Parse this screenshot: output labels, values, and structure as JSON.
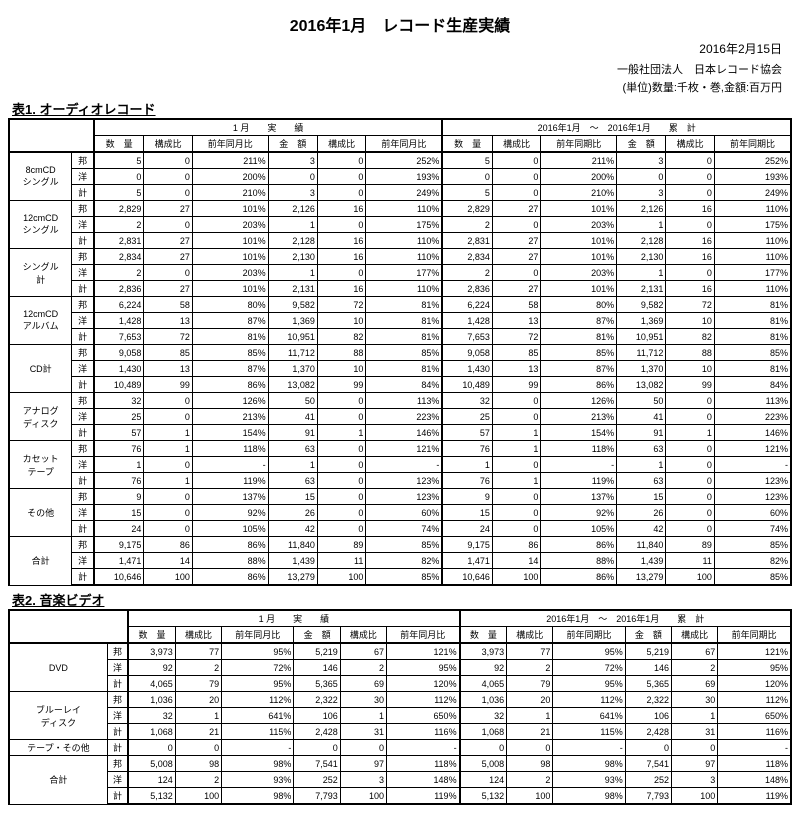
{
  "title": "2016年1月　レコード生産実績",
  "date": "2016年2月15日",
  "org": "一般社団法人　日本レコード協会",
  "unit": "(単位)数量:千枚・巻,金額:百万円",
  "t1": {
    "title": "表1. オーディオレコード",
    "h": {
      "m": "1 月　　実　　績",
      "c": "2016年1月　～　2016年1月　　累　計",
      "q": "数　量",
      "r": "構成比",
      "y": "前年同月比",
      "yc": "前年同期比",
      "a": "金　額"
    }
  },
  "t2": {
    "title": "表2. 音楽ビデオ"
  },
  "cats": [
    "8cmCD\nシングル",
    "12cmCD\nシングル",
    "シングル\n計",
    "12cmCD\nアルバム",
    "CD計",
    "アナログ\nディスク",
    "カセット\nテープ",
    "その他",
    "合計"
  ],
  "subs": [
    "邦",
    "洋",
    "計"
  ],
  "r1": [
    [
      [
        "5",
        "0",
        "211%",
        "3",
        "0",
        "252%"
      ],
      [
        "0",
        "0",
        "200%",
        "0",
        "0",
        "193%"
      ],
      [
        "5",
        "0",
        "210%",
        "3",
        "0",
        "249%"
      ]
    ],
    [
      [
        "2,829",
        "27",
        "101%",
        "2,126",
        "16",
        "110%"
      ],
      [
        "2",
        "0",
        "203%",
        "1",
        "0",
        "175%"
      ],
      [
        "2,831",
        "27",
        "101%",
        "2,128",
        "16",
        "110%"
      ]
    ],
    [
      [
        "2,834",
        "27",
        "101%",
        "2,130",
        "16",
        "110%"
      ],
      [
        "2",
        "0",
        "203%",
        "1",
        "0",
        "177%"
      ],
      [
        "2,836",
        "27",
        "101%",
        "2,131",
        "16",
        "110%"
      ]
    ],
    [
      [
        "6,224",
        "58",
        "80%",
        "9,582",
        "72",
        "81%"
      ],
      [
        "1,428",
        "13",
        "87%",
        "1,369",
        "10",
        "81%"
      ],
      [
        "7,653",
        "72",
        "81%",
        "10,951",
        "82",
        "81%"
      ]
    ],
    [
      [
        "9,058",
        "85",
        "85%",
        "11,712",
        "88",
        "85%"
      ],
      [
        "1,430",
        "13",
        "87%",
        "1,370",
        "10",
        "81%"
      ],
      [
        "10,489",
        "99",
        "86%",
        "13,082",
        "99",
        "84%"
      ]
    ],
    [
      [
        "32",
        "0",
        "126%",
        "50",
        "0",
        "113%"
      ],
      [
        "25",
        "0",
        "213%",
        "41",
        "0",
        "223%"
      ],
      [
        "57",
        "1",
        "154%",
        "91",
        "1",
        "146%"
      ]
    ],
    [
      [
        "76",
        "1",
        "118%",
        "63",
        "0",
        "121%"
      ],
      [
        "1",
        "0",
        "-",
        "1",
        "0",
        "-"
      ],
      [
        "76",
        "1",
        "119%",
        "63",
        "0",
        "123%"
      ]
    ],
    [
      [
        "9",
        "0",
        "137%",
        "15",
        "0",
        "123%"
      ],
      [
        "15",
        "0",
        "92%",
        "26",
        "0",
        "60%"
      ],
      [
        "24",
        "0",
        "105%",
        "42",
        "0",
        "74%"
      ]
    ],
    [
      [
        "9,175",
        "86",
        "86%",
        "11,840",
        "89",
        "85%"
      ],
      [
        "1,471",
        "14",
        "88%",
        "1,439",
        "11",
        "82%"
      ],
      [
        "10,646",
        "100",
        "86%",
        "13,279",
        "100",
        "85%"
      ]
    ]
  ],
  "cats2": [
    "DVD",
    "ブルーレイ\nディスク",
    "テープ・その他",
    "合計"
  ],
  "r2": [
    [
      [
        "3,973",
        "77",
        "95%",
        "5,219",
        "67",
        "121%"
      ],
      [
        "92",
        "2",
        "72%",
        "146",
        "2",
        "95%"
      ],
      [
        "4,065",
        "79",
        "95%",
        "5,365",
        "69",
        "120%"
      ]
    ],
    [
      [
        "1,036",
        "20",
        "112%",
        "2,322",
        "30",
        "112%"
      ],
      [
        "32",
        "1",
        "641%",
        "106",
        "1",
        "650%"
      ],
      [
        "1,068",
        "21",
        "115%",
        "2,428",
        "31",
        "116%"
      ]
    ],
    [
      [
        "0",
        "0",
        "-",
        "0",
        "0",
        "-"
      ]
    ],
    [
      [
        "5,008",
        "98",
        "98%",
        "7,541",
        "97",
        "118%"
      ],
      [
        "124",
        "2",
        "93%",
        "252",
        "3",
        "148%"
      ],
      [
        "5,132",
        "100",
        "98%",
        "7,793",
        "100",
        "119%"
      ]
    ]
  ]
}
